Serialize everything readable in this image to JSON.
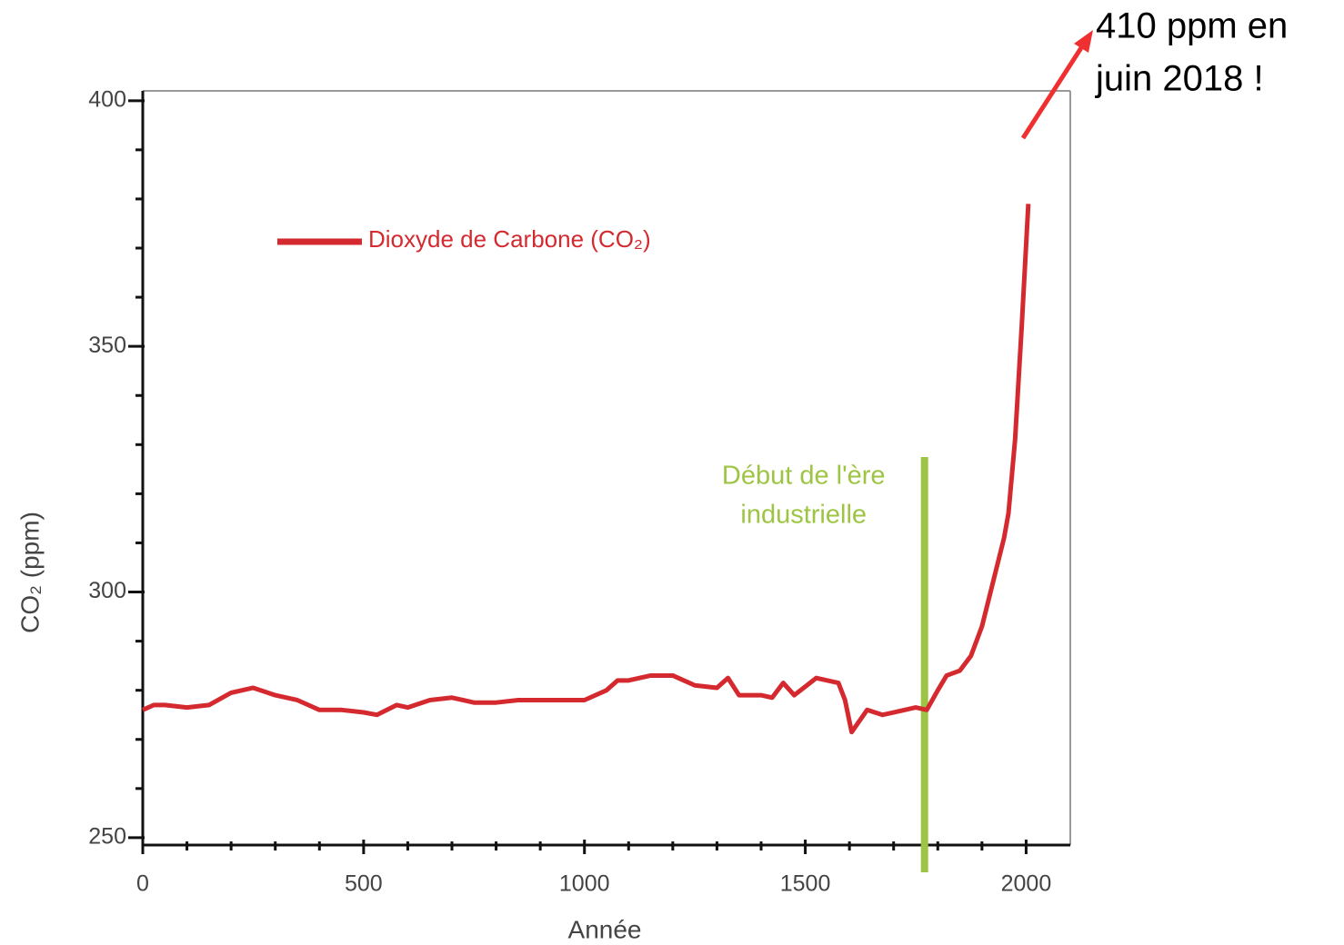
{
  "chart_data": {
    "type": "line",
    "xlabel": "Année",
    "ylabel": "CO₂ (ppm)",
    "x": [
      0,
      25,
      50,
      100,
      150,
      200,
      250,
      300,
      350,
      400,
      450,
      500,
      530,
      575,
      600,
      650,
      700,
      750,
      800,
      850,
      900,
      950,
      1000,
      1050,
      1075,
      1100,
      1150,
      1200,
      1250,
      1300,
      1325,
      1350,
      1400,
      1425,
      1450,
      1475,
      1525,
      1575,
      1590,
      1605,
      1640,
      1675,
      1700,
      1750,
      1775,
      1800,
      1820,
      1850,
      1875,
      1900,
      1925,
      1950,
      1960,
      1975,
      1990,
      2005
    ],
    "series": [
      {
        "name": "Dioxyde de Carbone (CO₂)",
        "color": "#d42a2f",
        "values": [
          276,
          277,
          277,
          276.5,
          277,
          279.5,
          280.5,
          279,
          278,
          276,
          276,
          275.5,
          275,
          277,
          276.5,
          278,
          278.5,
          277.5,
          277.5,
          278,
          278,
          278,
          278,
          280,
          282,
          282,
          283,
          283,
          281,
          280.5,
          282.5,
          279,
          279,
          278.5,
          281.5,
          279,
          282.5,
          281.5,
          278,
          271.5,
          276,
          275,
          275.5,
          276.5,
          276,
          280,
          283,
          284,
          287,
          293,
          302,
          311,
          316,
          331,
          354,
          379
        ]
      }
    ],
    "xlim": [
      0,
      2100
    ],
    "xticks": [
      0,
      500,
      1000,
      1500,
      2000
    ],
    "xminorticks": [
      100,
      200,
      300,
      400,
      600,
      700,
      800,
      900,
      1100,
      1200,
      1300,
      1400,
      1600,
      1700,
      1800,
      1900
    ],
    "ylim": [
      248.5,
      402
    ],
    "yticks": [
      250,
      300,
      350,
      400
    ],
    "yminorticks": [
      260,
      270,
      280,
      290,
      310,
      320,
      330,
      340,
      360,
      370,
      380,
      390
    ],
    "legend": "upper left",
    "markers": [
      {
        "x": 1770,
        "label": [
          "Début de l'ère",
          "industrielle"
        ],
        "color": "#9dc543"
      }
    ],
    "annotation": {
      "lines": [
        "410 ppm en",
        "juin 2018 !"
      ],
      "arrow_color": "#f03030"
    }
  }
}
